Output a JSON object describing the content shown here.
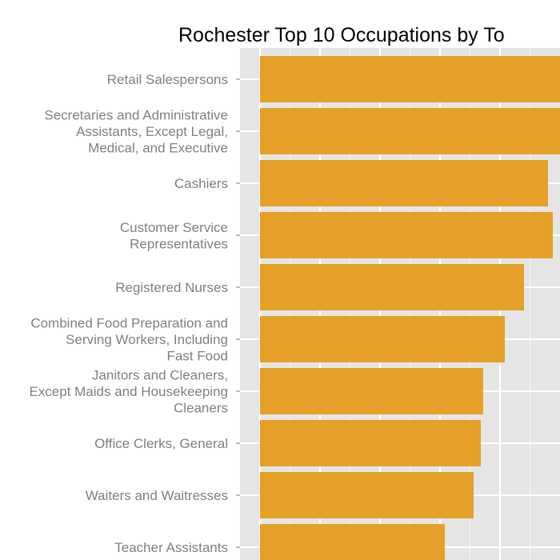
{
  "chart_data": {
    "type": "bar",
    "orientation": "horizontal",
    "title": "Rochester Top 10 Occupations by To",
    "xlabel": "",
    "ylabel": "",
    "categories": [
      "Retail Salespersons",
      "Secretaries and Administrative Assistants, Except Legal, Medical, and Executive",
      "Cashiers",
      "Customer Service Representatives",
      "Registered Nurses",
      "Combined Food Preparation and Serving Workers, Including Fast Food",
      "Janitors and Cleaners, Except Maids and Housekeeping Cleaners",
      "Office Clerks, General",
      "Waiters and Waitresses",
      "Teacher Assistants"
    ],
    "category_lines": [
      [
        "Retail Salespersons"
      ],
      [
        "Secretaries and Administrative",
        "Assistants, Except Legal,",
        "Medical, and Executive"
      ],
      [
        "Cashiers"
      ],
      [
        "Customer Service",
        "Representatives"
      ],
      [
        "Registered Nurses"
      ],
      [
        "Combined Food Preparation and",
        "Serving Workers, Including",
        "Fast Food"
      ],
      [
        "Janitors and Cleaners,",
        "Except Maids and Housekeeping",
        "Cleaners"
      ],
      [
        "Office Clerks, General"
      ],
      [
        "Waiters and Waitresses"
      ],
      [
        "Teacher Assistants"
      ]
    ],
    "values": [
      13000,
      12500,
      12000,
      12200,
      11000,
      10200,
      9300,
      9200,
      8900,
      7700
    ],
    "xlim": [
      0,
      12500
    ],
    "x_gridlines": [
      0,
      2500,
      5000,
      7500,
      10000,
      12500
    ],
    "grid": true,
    "bar_color": "#E5A027",
    "panel_background": "#E5E5E5",
    "grid_color": "#FFFFFF"
  }
}
